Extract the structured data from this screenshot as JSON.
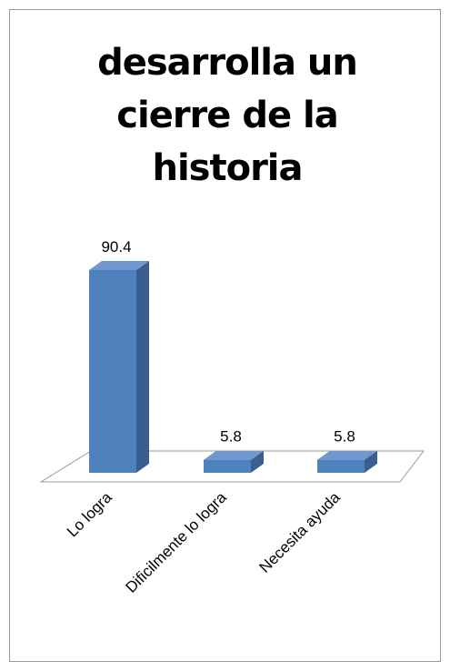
{
  "chart_data": {
    "type": "bar3d",
    "title": "desarrolla un cierre de la historia",
    "categories": [
      "Lo logra",
      "Dificilmente lo logra",
      "Necesita ayuda"
    ],
    "values": [
      90.4,
      5.8,
      5.8
    ],
    "color": "#4f81bd"
  }
}
